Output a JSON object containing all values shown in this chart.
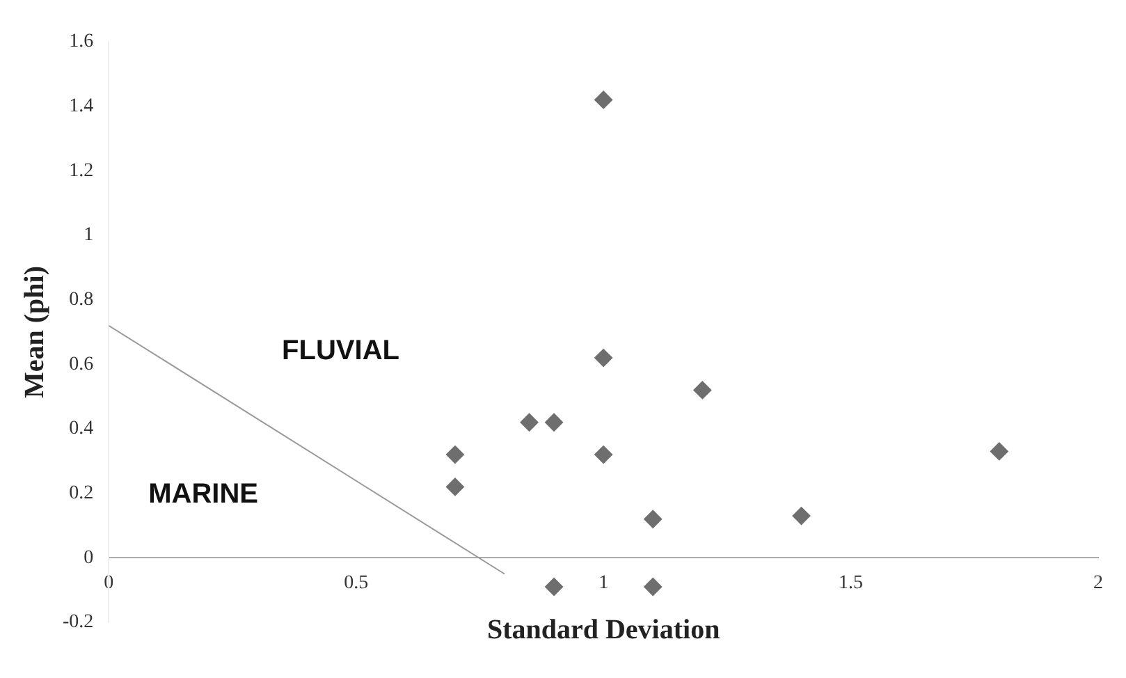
{
  "chart_data": {
    "type": "scatter",
    "xlabel": "Standard Deviation",
    "ylabel": "Mean (phi)",
    "xlim": [
      0,
      2
    ],
    "xticks": [
      0,
      0.5,
      1,
      1.5,
      2
    ],
    "ylim": [
      -0.2,
      1.6
    ],
    "yticks": [
      -0.2,
      0,
      0.2,
      0.4,
      0.6,
      0.8,
      1,
      1.2,
      1.4,
      1.6
    ],
    "grid": false,
    "legend": false,
    "marker": "diamond",
    "series": [
      {
        "color": "#6e6e6e",
        "x": [
          1.0,
          1.0,
          1.2,
          0.85,
          0.9,
          0.7,
          0.7,
          1.0,
          1.1,
          1.4,
          1.8,
          0.9,
          1.1
        ],
        "values": [
          1.42,
          0.62,
          0.52,
          0.42,
          0.42,
          0.32,
          0.22,
          0.32,
          0.12,
          0.13,
          0.33,
          -0.09,
          -0.09
        ]
      },
      {
        "type": "line",
        "color": "#9a9a9a",
        "marker": "none",
        "x": [
          0,
          0.8
        ],
        "values": [
          0.72,
          -0.05
        ]
      }
    ],
    "annotations": [
      "FLUVIAL",
      "MARINE"
    ]
  }
}
